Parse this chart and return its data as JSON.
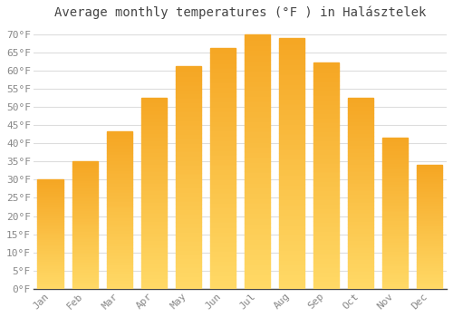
{
  "title": "Average monthly temperatures (°F ) in Halásztelek",
  "months": [
    "Jan",
    "Feb",
    "Mar",
    "Apr",
    "May",
    "Jun",
    "Jul",
    "Aug",
    "Sep",
    "Oct",
    "Nov",
    "Dec"
  ],
  "values": [
    30.2,
    35.1,
    43.3,
    52.5,
    61.2,
    66.2,
    70.0,
    68.9,
    62.2,
    52.5,
    41.5,
    34.0
  ],
  "bar_color_top": "#F5A623",
  "bar_color_bottom": "#FFD966",
  "background_color": "#FFFFFF",
  "grid_color": "#DDDDDD",
  "text_color": "#888888",
  "title_color": "#444444",
  "ylim": [
    0,
    72
  ],
  "yticks": [
    0,
    5,
    10,
    15,
    20,
    25,
    30,
    35,
    40,
    45,
    50,
    55,
    60,
    65,
    70
  ],
  "title_fontsize": 10,
  "tick_fontsize": 8,
  "bar_width": 0.75
}
